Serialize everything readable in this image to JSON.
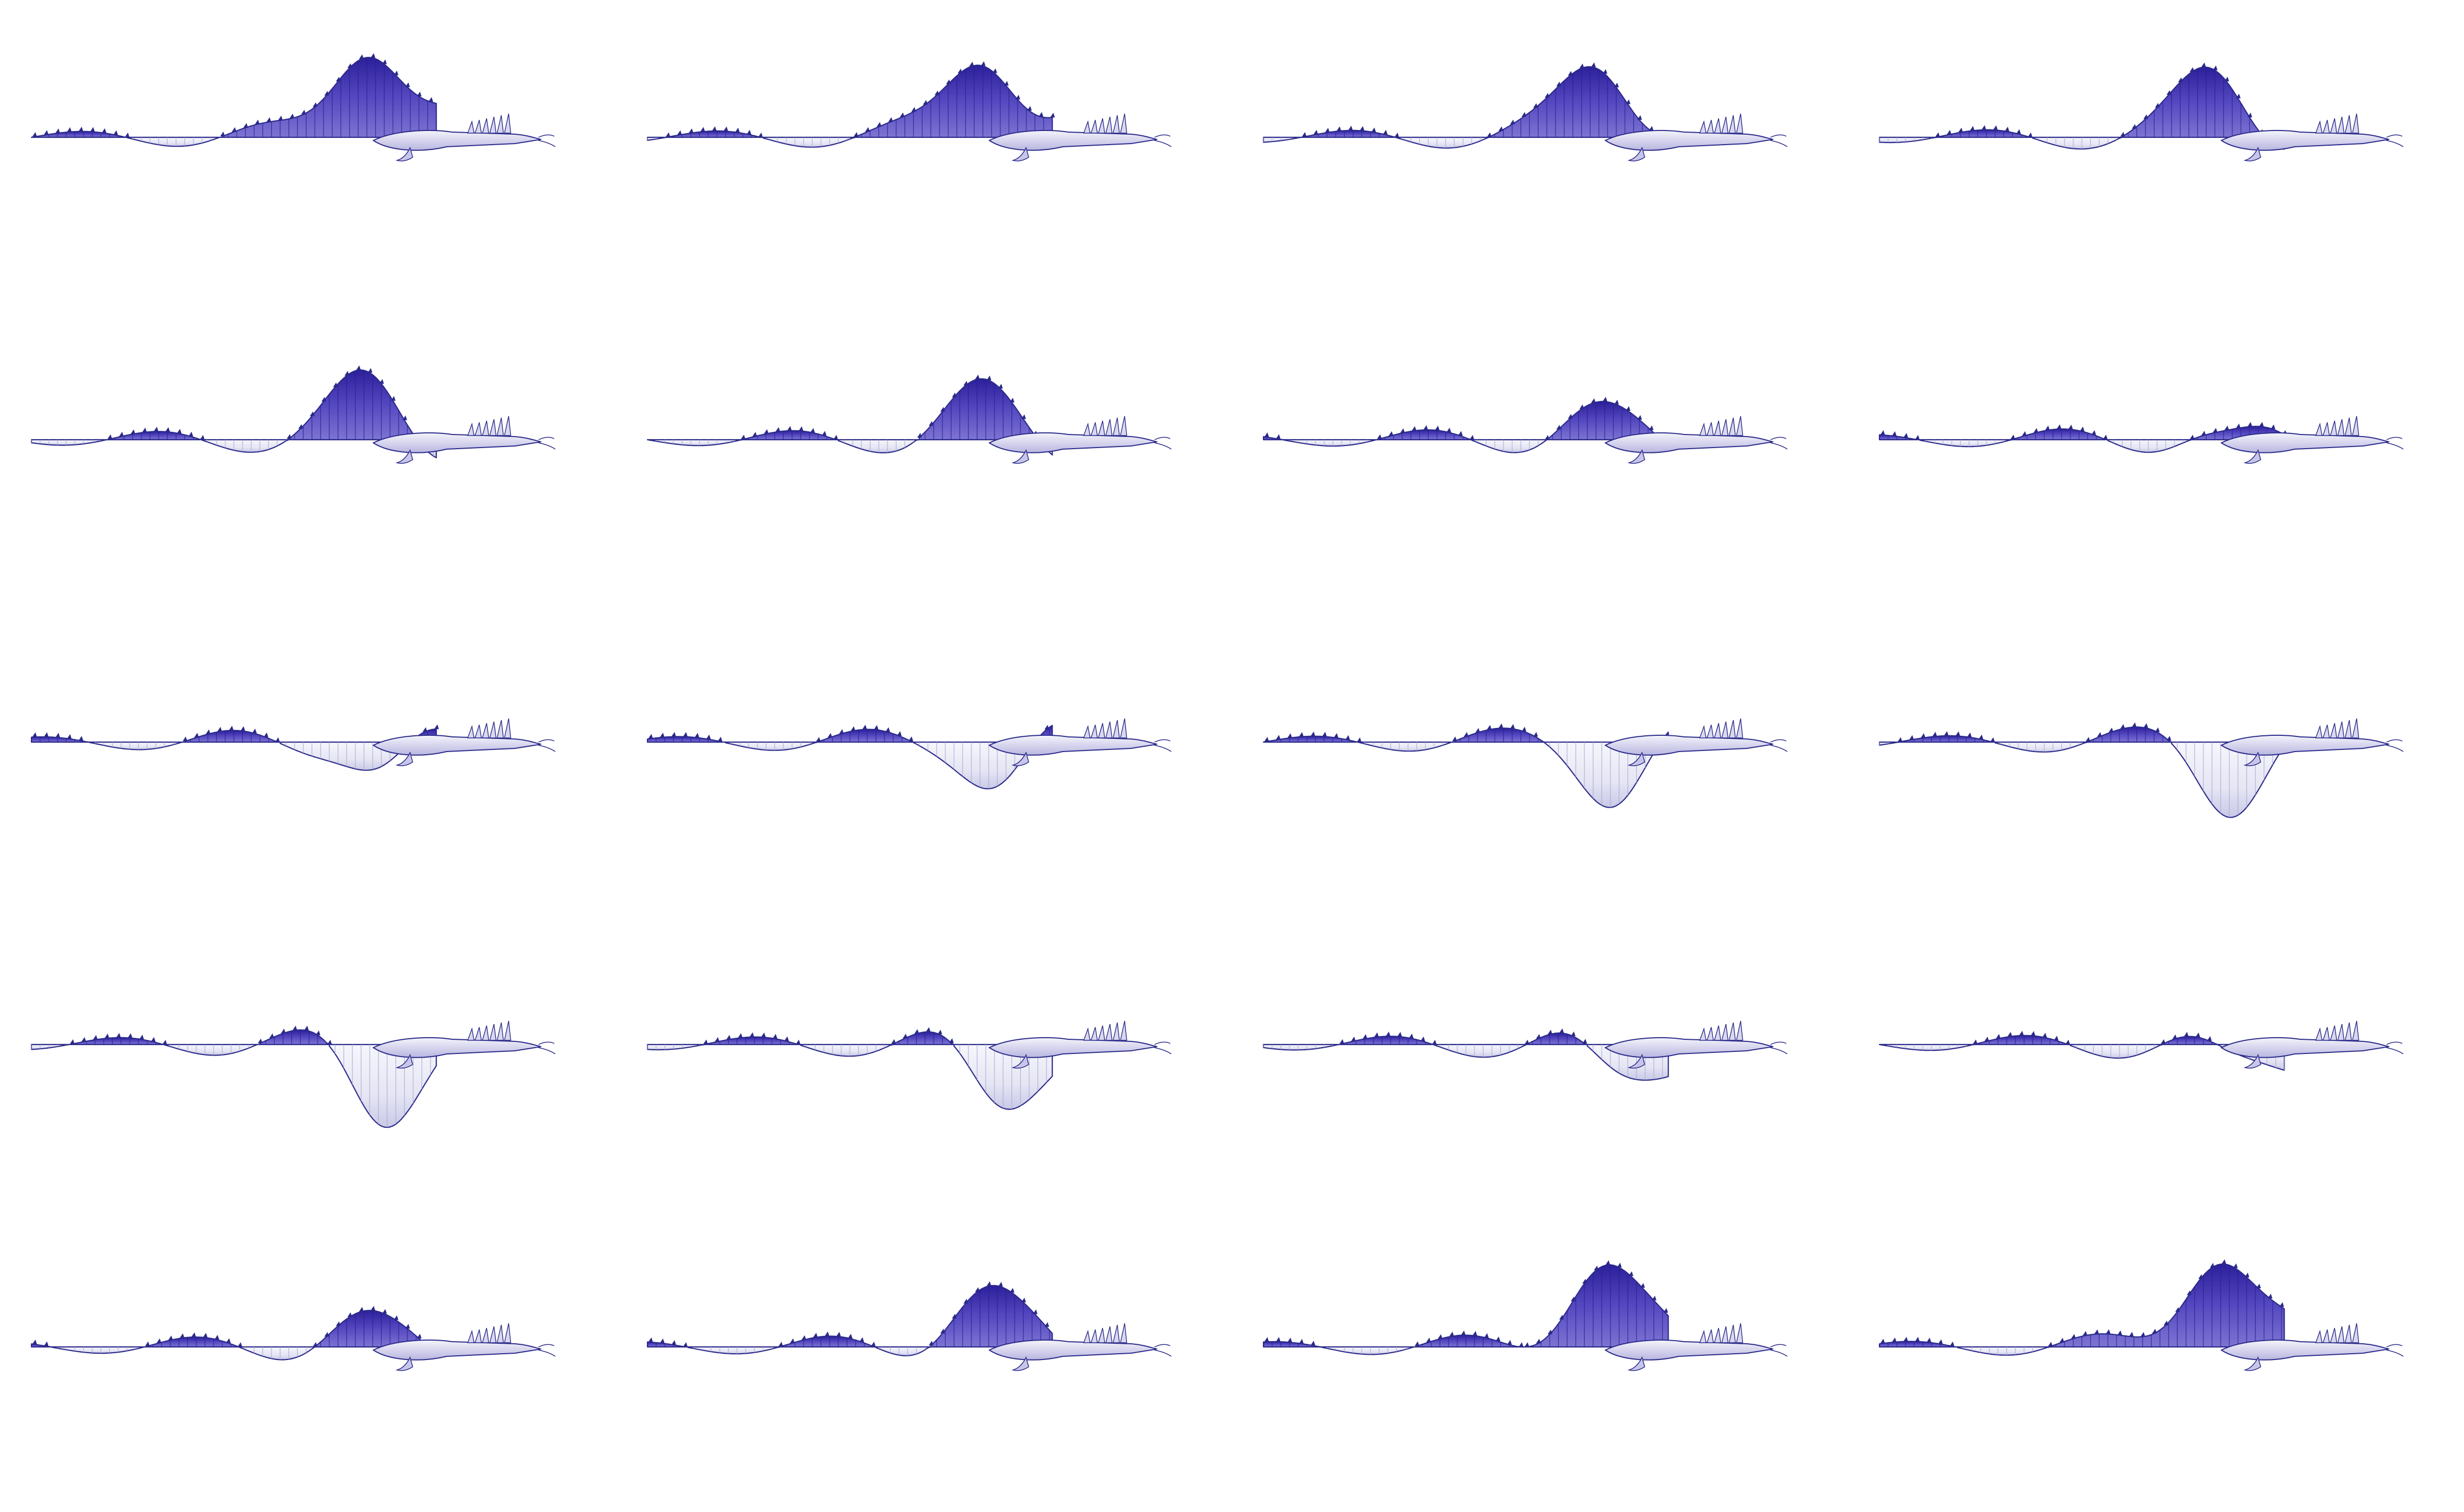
{
  "sheet": {
    "background": "#ffffff",
    "rows": 5,
    "columns": 4
  },
  "palette": {
    "membrane_dark": "#3d2fa8",
    "membrane_mid": "#5a4ec0",
    "membrane_light": "#eeeef8",
    "rib_light": "#a8a8d8",
    "rib_dark": "#2a2090",
    "outline": "#2b2a8a"
  },
  "frames": [
    {
      "phase": 0.0,
      "sail": 1.0,
      "hang": 0.0
    },
    {
      "phase": 0.05,
      "sail": 0.9,
      "hang": 0.0
    },
    {
      "phase": 0.1,
      "sail": 0.78,
      "hang": 0.0
    },
    {
      "phase": 0.15,
      "sail": 0.65,
      "hang": 0.0
    },
    {
      "phase": 0.2,
      "sail": 0.55,
      "hang": 0.0
    },
    {
      "phase": 0.25,
      "sail": 0.45,
      "hang": 0.05
    },
    {
      "phase": 0.3,
      "sail": 0.38,
      "hang": 0.25
    },
    {
      "phase": 0.35,
      "sail": 0.3,
      "hang": 0.45
    },
    {
      "phase": 0.4,
      "sail": 0.25,
      "hang": 0.7
    },
    {
      "phase": 0.45,
      "sail": 0.22,
      "hang": 0.75
    },
    {
      "phase": 0.5,
      "sail": 0.2,
      "hang": 0.85
    },
    {
      "phase": 0.55,
      "sail": 0.18,
      "hang": 0.9
    },
    {
      "phase": 0.6,
      "sail": 0.16,
      "hang": 1.0
    },
    {
      "phase": 0.65,
      "sail": 0.15,
      "hang": 0.85
    },
    {
      "phase": 0.7,
      "sail": 0.14,
      "hang": 0.55
    },
    {
      "phase": 0.75,
      "sail": 0.14,
      "hang": 0.45
    },
    {
      "phase": 0.8,
      "sail": 0.4,
      "hang": 0.3
    },
    {
      "phase": 0.85,
      "sail": 0.6,
      "hang": 0.15
    },
    {
      "phase": 0.9,
      "sail": 0.85,
      "hang": 0.05
    },
    {
      "phase": 0.95,
      "sail": 0.95,
      "hang": 0.0
    }
  ]
}
